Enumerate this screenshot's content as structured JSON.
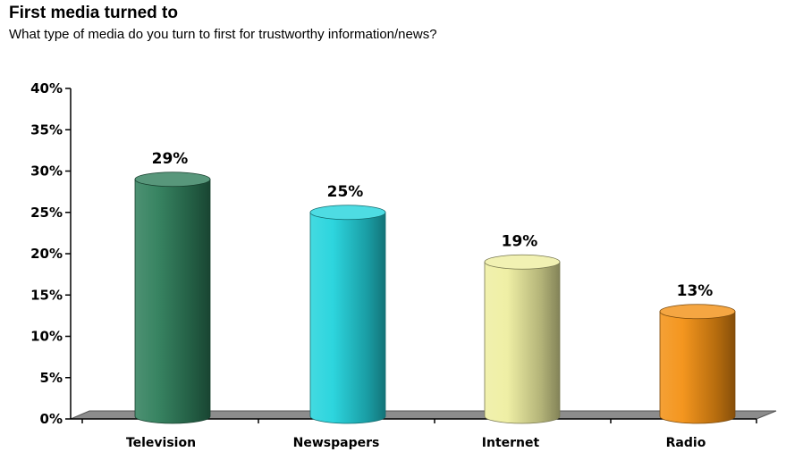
{
  "chart_data": {
    "type": "bar",
    "title": "First media turned to",
    "subtitle": "What type of media do you turn to first for trustworthy information/news?",
    "categories": [
      "Television",
      "Newspapers",
      "Internet",
      "Radio"
    ],
    "values": [
      29,
      25,
      19,
      13
    ],
    "data_labels": [
      "29%",
      "25%",
      "19%",
      "13%"
    ],
    "ylim": [
      0,
      40
    ],
    "yticks": [
      0,
      5,
      10,
      15,
      20,
      25,
      30,
      35,
      40
    ],
    "ytick_labels": [
      "0%",
      "5%",
      "10%",
      "15%",
      "20%",
      "25%",
      "30%",
      "35%",
      "40%"
    ],
    "xlabel": "",
    "ylabel": "",
    "grid": false,
    "legend": "none",
    "bar_colors": [
      "#2e7d5a",
      "#22d3dc",
      "#eeeea0",
      "#f39013"
    ],
    "floor_color": "#8c8c8c"
  }
}
